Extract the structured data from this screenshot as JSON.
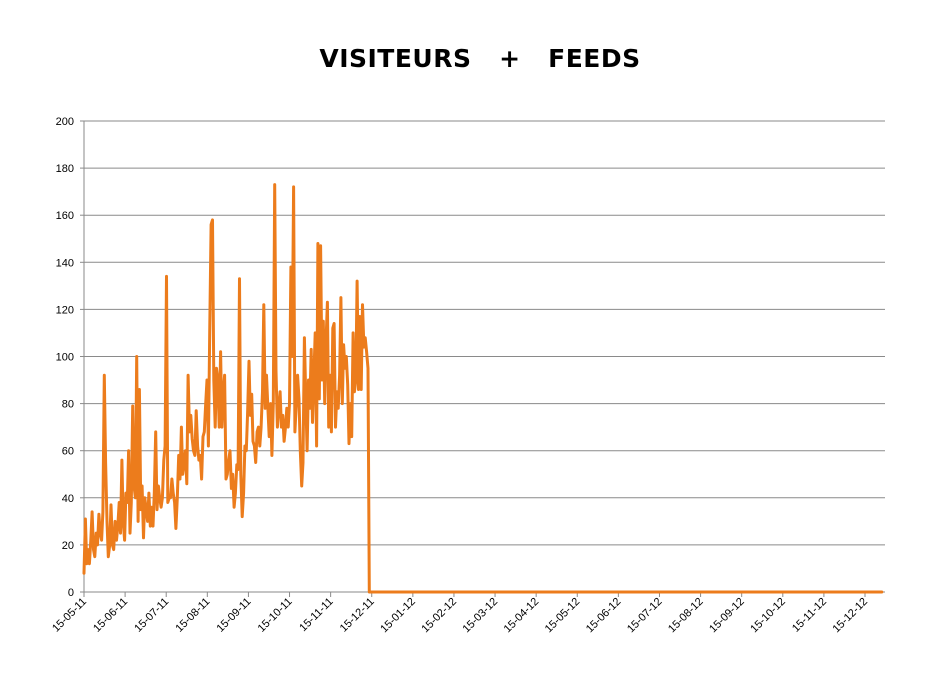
{
  "chart_data": {
    "type": "line",
    "title": "VISITEURS   +   FEEDS",
    "xlabel": "",
    "ylabel": "",
    "ylim": [
      0,
      200
    ],
    "y_ticks": [
      0,
      20,
      40,
      60,
      80,
      100,
      120,
      140,
      160,
      180,
      200
    ],
    "x_tick_labels": [
      "15-05-11",
      "15-06-11",
      "15-07-11",
      "15-08-11",
      "15-09-11",
      "15-10-11",
      "15-11-11",
      "15-12-11",
      "15-01-12",
      "15-02-12",
      "15-03-12",
      "15-04-12",
      "15-05-12",
      "15-06-12",
      "15-07-12",
      "15-08-12",
      "15-09-12",
      "15-10-12",
      "15-11-12",
      "15-12-12"
    ],
    "x_range_days": [
      0,
      590
    ],
    "grid": true,
    "legend": "none",
    "line_color": "#ec7c1c",
    "series": [
      {
        "points": [
          [
            0,
            8
          ],
          [
            1,
            31
          ],
          [
            2,
            12
          ],
          [
            3,
            18
          ],
          [
            4,
            12
          ],
          [
            5,
            22
          ],
          [
            6,
            34
          ],
          [
            7,
            18
          ],
          [
            8,
            15
          ],
          [
            9,
            25
          ],
          [
            10,
            20
          ],
          [
            11,
            33
          ],
          [
            12,
            25
          ],
          [
            13,
            22
          ],
          [
            14,
            34
          ],
          [
            15,
            92
          ],
          [
            16,
            55
          ],
          [
            17,
            30
          ],
          [
            18,
            15
          ],
          [
            19,
            20
          ],
          [
            20,
            37
          ],
          [
            21,
            20
          ],
          [
            22,
            18
          ],
          [
            23,
            30
          ],
          [
            24,
            22
          ],
          [
            25,
            28
          ],
          [
            26,
            38
          ],
          [
            27,
            25
          ],
          [
            28,
            56
          ],
          [
            29,
            30
          ],
          [
            30,
            22
          ],
          [
            31,
            42
          ],
          [
            32,
            38
          ],
          [
            33,
            60
          ],
          [
            34,
            25
          ],
          [
            35,
            38
          ],
          [
            36,
            79
          ],
          [
            37,
            45
          ],
          [
            38,
            40
          ],
          [
            39,
            100
          ],
          [
            40,
            30
          ],
          [
            41,
            86
          ],
          [
            42,
            35
          ],
          [
            43,
            45
          ],
          [
            44,
            23
          ],
          [
            45,
            40
          ],
          [
            46,
            35
          ],
          [
            47,
            30
          ],
          [
            48,
            42
          ],
          [
            49,
            28
          ],
          [
            50,
            36
          ],
          [
            51,
            28
          ],
          [
            52,
            42
          ],
          [
            53,
            68
          ],
          [
            54,
            35
          ],
          [
            55,
            45
          ],
          [
            56,
            40
          ],
          [
            57,
            36
          ],
          [
            58,
            40
          ],
          [
            59,
            56
          ],
          [
            60,
            62
          ],
          [
            61,
            134
          ],
          [
            62,
            38
          ],
          [
            63,
            40
          ],
          [
            64,
            40
          ],
          [
            65,
            48
          ],
          [
            66,
            42
          ],
          [
            67,
            38
          ],
          [
            68,
            27
          ],
          [
            69,
            40
          ],
          [
            70,
            58
          ],
          [
            71,
            48
          ],
          [
            72,
            70
          ],
          [
            73,
            50
          ],
          [
            74,
            55
          ],
          [
            75,
            60
          ],
          [
            76,
            46
          ],
          [
            77,
            92
          ],
          [
            78,
            68
          ],
          [
            79,
            75
          ],
          [
            80,
            65
          ],
          [
            81,
            60
          ],
          [
            82,
            58
          ],
          [
            83,
            77
          ],
          [
            84,
            62
          ],
          [
            85,
            56
          ],
          [
            86,
            58
          ],
          [
            87,
            48
          ],
          [
            88,
            66
          ],
          [
            89,
            68
          ],
          [
            90,
            80
          ],
          [
            91,
            90
          ],
          [
            92,
            62
          ],
          [
            93,
            110
          ],
          [
            94,
            156
          ],
          [
            95,
            158
          ],
          [
            96,
            90
          ],
          [
            97,
            70
          ],
          [
            98,
            95
          ],
          [
            99,
            90
          ],
          [
            100,
            70
          ],
          [
            101,
            102
          ],
          [
            102,
            70
          ],
          [
            103,
            85
          ],
          [
            104,
            92
          ],
          [
            105,
            48
          ],
          [
            106,
            50
          ],
          [
            107,
            56
          ],
          [
            108,
            60
          ],
          [
            109,
            44
          ],
          [
            110,
            50
          ],
          [
            111,
            36
          ],
          [
            112,
            42
          ],
          [
            113,
            54
          ],
          [
            114,
            52
          ],
          [
            115,
            133
          ],
          [
            116,
            50
          ],
          [
            117,
            32
          ],
          [
            118,
            42
          ],
          [
            119,
            62
          ],
          [
            120,
            60
          ],
          [
            121,
            76
          ],
          [
            122,
            98
          ],
          [
            123,
            75
          ],
          [
            124,
            84
          ],
          [
            125,
            64
          ],
          [
            126,
            62
          ],
          [
            127,
            55
          ],
          [
            128,
            68
          ],
          [
            129,
            70
          ],
          [
            130,
            62
          ],
          [
            131,
            70
          ],
          [
            132,
            85
          ],
          [
            133,
            122
          ],
          [
            134,
            78
          ],
          [
            135,
            92
          ],
          [
            136,
            78
          ],
          [
            137,
            66
          ],
          [
            138,
            80
          ],
          [
            139,
            58
          ],
          [
            140,
            80
          ],
          [
            141,
            173
          ],
          [
            142,
            94
          ],
          [
            143,
            70
          ],
          [
            144,
            78
          ],
          [
            145,
            85
          ],
          [
            146,
            70
          ],
          [
            147,
            75
          ],
          [
            148,
            64
          ],
          [
            149,
            70
          ],
          [
            150,
            78
          ],
          [
            151,
            70
          ],
          [
            152,
            80
          ],
          [
            153,
            138
          ],
          [
            154,
            100
          ],
          [
            155,
            172
          ],
          [
            156,
            68
          ],
          [
            157,
            80
          ],
          [
            158,
            92
          ],
          [
            159,
            82
          ],
          [
            160,
            60
          ],
          [
            161,
            45
          ],
          [
            162,
            55
          ],
          [
            163,
            108
          ],
          [
            164,
            82
          ],
          [
            165,
            60
          ],
          [
            166,
            90
          ],
          [
            167,
            78
          ],
          [
            168,
            103
          ],
          [
            169,
            72
          ],
          [
            170,
            92
          ],
          [
            171,
            110
          ],
          [
            172,
            62
          ],
          [
            173,
            148
          ],
          [
            174,
            82
          ],
          [
            175,
            147
          ],
          [
            176,
            90
          ],
          [
            177,
            115
          ],
          [
            178,
            80
          ],
          [
            179,
            106
          ],
          [
            180,
            123
          ],
          [
            181,
            70
          ],
          [
            182,
            92
          ],
          [
            183,
            68
          ],
          [
            184,
            112
          ],
          [
            185,
            114
          ],
          [
            186,
            70
          ],
          [
            187,
            85
          ],
          [
            188,
            78
          ],
          [
            189,
            92
          ],
          [
            190,
            125
          ],
          [
            191,
            80
          ],
          [
            192,
            105
          ],
          [
            193,
            95
          ],
          [
            194,
            100
          ],
          [
            195,
            88
          ],
          [
            196,
            63
          ],
          [
            197,
            80
          ],
          [
            198,
            66
          ],
          [
            199,
            110
          ],
          [
            200,
            85
          ],
          [
            201,
            90
          ],
          [
            202,
            132
          ],
          [
            203,
            86
          ],
          [
            204,
            117
          ],
          [
            205,
            86
          ],
          [
            206,
            122
          ],
          [
            207,
            104
          ],
          [
            208,
            108
          ],
          [
            209,
            102
          ],
          [
            210,
            95
          ],
          [
            211,
            0
          ],
          [
            590,
            0
          ]
        ]
      }
    ]
  }
}
